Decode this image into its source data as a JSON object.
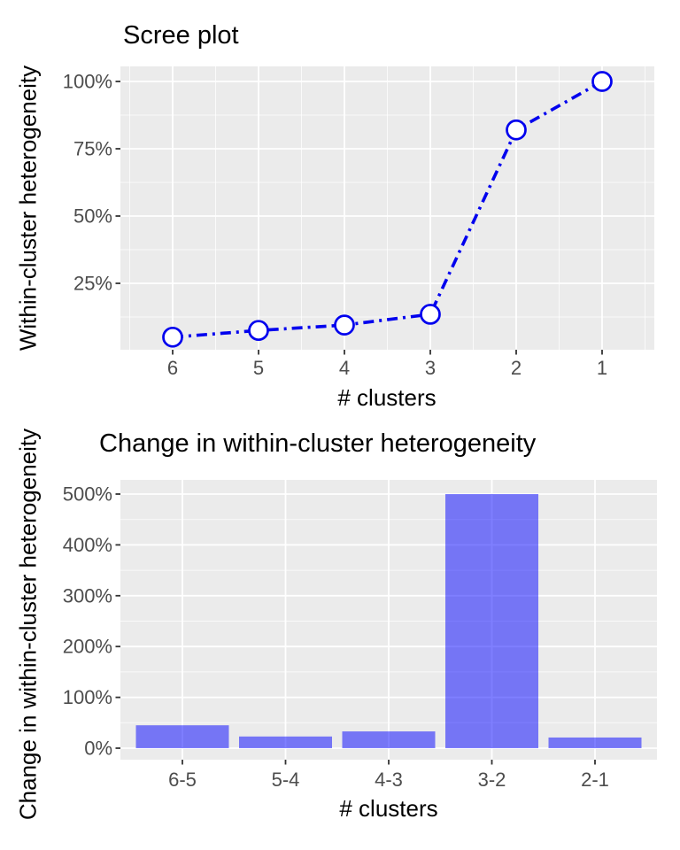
{
  "figure": {
    "background": "#FFFFFF"
  },
  "colors": {
    "panel_background": "#EBEBEB",
    "grid_major": "#FFFFFF",
    "grid_minor": "#FFFFFF",
    "tick_mark": "#333333",
    "tick_label": "#4D4D4D",
    "title_text": "#000000",
    "line_stroke": "#0000EE",
    "point_fill": "#FFFFFF",
    "bar_fill": "#0000FF"
  },
  "chart_data": [
    {
      "type": "line",
      "title": "Scree plot",
      "xlabel": "# clusters",
      "ylabel": "Within-cluster heterogeneity",
      "x_tick_labels": [
        "6",
        "5",
        "4",
        "3",
        "2",
        "1"
      ],
      "x_values": [
        6,
        5,
        4,
        3,
        2,
        1
      ],
      "y_values_pct": [
        5,
        7.5,
        9.5,
        13.5,
        82,
        100
      ],
      "y_ticks_pct": [
        25,
        50,
        75,
        100
      ],
      "y_tick_labels": [
        "25%",
        "50%",
        "75%",
        "100%"
      ],
      "ylim_pct": [
        0,
        105
      ],
      "x_axis_reversed": true,
      "line_style": "dot-dash",
      "marker": "open-circle",
      "grid": "on",
      "legend": "none"
    },
    {
      "type": "bar",
      "title": "Change in within-cluster heterogeneity",
      "xlabel": "# clusters",
      "ylabel": "Change in within-cluster heterogeneity",
      "categories": [
        "6-5",
        "5-4",
        "4-3",
        "3-2",
        "2-1"
      ],
      "values_pct": [
        45,
        23,
        33,
        500,
        21
      ],
      "y_ticks_pct": [
        0,
        100,
        200,
        300,
        400,
        500
      ],
      "y_tick_labels": [
        "0%",
        "100%",
        "200%",
        "300%",
        "400%",
        "500%"
      ],
      "ylim_pct": [
        0,
        525
      ],
      "grid": "on",
      "legend": "none"
    }
  ]
}
